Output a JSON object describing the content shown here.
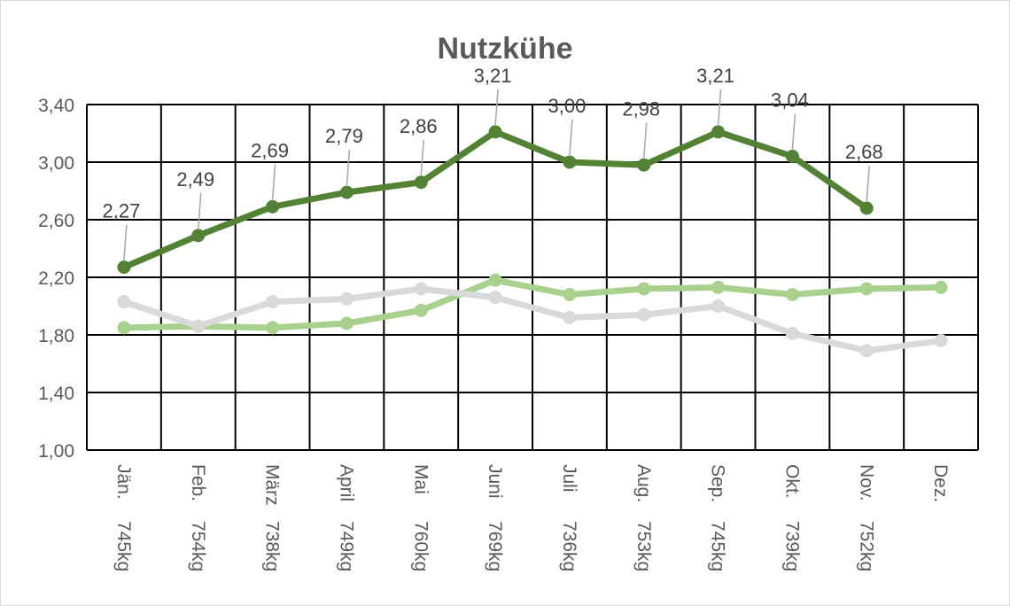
{
  "chart_data": {
    "type": "line",
    "title": "Nutzkühe",
    "categories": [
      {
        "month": "Jän.",
        "weight": "745kg"
      },
      {
        "month": "Feb.",
        "weight": "754kg"
      },
      {
        "month": "März",
        "weight": "738kg"
      },
      {
        "month": "April",
        "weight": "749kg"
      },
      {
        "month": "Mai",
        "weight": "760kg"
      },
      {
        "month": "Juni",
        "weight": "769kg"
      },
      {
        "month": "Juli",
        "weight": "736kg"
      },
      {
        "month": "Aug.",
        "weight": "753kg"
      },
      {
        "month": "Sep.",
        "weight": "745kg"
      },
      {
        "month": "Okt.",
        "weight": "739kg"
      },
      {
        "month": "Nov.",
        "weight": "752kg"
      },
      {
        "month": "Dez.",
        "weight": ""
      }
    ],
    "ylim": [
      1.0,
      3.4
    ],
    "yticks": [
      "1,00",
      "1,40",
      "1,80",
      "2,20",
      "2,60",
      "3,00",
      "3,40"
    ],
    "grid": true,
    "series": [
      {
        "color": "#a9d18e",
        "values": [
          1.85,
          1.86,
          1.85,
          1.88,
          1.97,
          2.18,
          2.08,
          2.12,
          2.13,
          2.08,
          2.12,
          2.13
        ]
      },
      {
        "color": "#d9d9d9",
        "values": [
          2.03,
          1.86,
          2.03,
          2.05,
          2.12,
          2.06,
          1.92,
          1.94,
          2.0,
          1.81,
          1.69,
          1.76
        ]
      },
      {
        "color": "#548235",
        "values": [
          2.27,
          2.49,
          2.69,
          2.79,
          2.86,
          3.21,
          3.0,
          2.98,
          3.21,
          3.04,
          2.68,
          null
        ],
        "data_labels": [
          "2,27",
          "2,49",
          "2,69",
          "2,79",
          "2,86",
          "3,21",
          "3,00",
          "2,98",
          "3,21",
          "3,04",
          "2,68",
          ""
        ]
      }
    ]
  }
}
